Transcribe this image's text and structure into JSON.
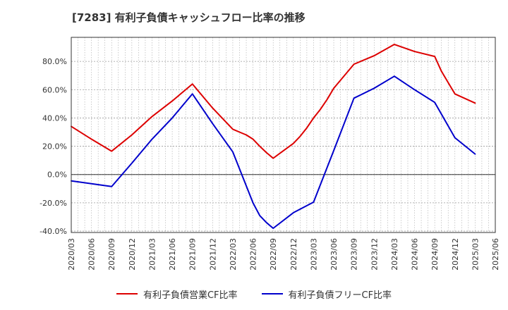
{
  "chart_data": {
    "type": "line",
    "title": "[7283]  有利子負債キャッシュフロー比率の推移",
    "x_ticks": [
      "2020/03",
      "2020/06",
      "2020/09",
      "2020/12",
      "2021/03",
      "2021/06",
      "2021/09",
      "2021/12",
      "2022/03",
      "2022/06",
      "2022/09",
      "2022/12",
      "2023/03",
      "2023/06",
      "2023/09",
      "2023/12",
      "2024/03",
      "2024/06",
      "2024/09",
      "2024/12",
      "2025/03",
      "2025/06"
    ],
    "y_ticks": [
      "-40.0%",
      "-20.0%",
      "0.0%",
      "20.0%",
      "40.0%",
      "60.0%",
      "80.0%"
    ],
    "y_tick_values": [
      -40,
      -20,
      0,
      20,
      40,
      60,
      80
    ],
    "ylim": [
      -41,
      97
    ],
    "grid": true,
    "legend_position": "bottom",
    "series": [
      {
        "name": "有利子負債営業CF比率",
        "color": "#dd0000",
        "x": [
          "2020/03",
          "2020/06",
          "2020/09",
          "2020/12",
          "2021/03",
          "2021/06",
          "2021/09",
          "2021/12",
          "2022/03",
          "2022/04",
          "2022/05",
          "2022/06",
          "2022/07",
          "2022/08",
          "2022/09",
          "2022/10",
          "2022/11",
          "2022/12",
          "2023/01",
          "2023/02",
          "2023/03",
          "2023/04",
          "2023/05",
          "2023/06",
          "2023/09",
          "2023/12",
          "2024/03",
          "2024/06",
          "2024/09",
          "2024/10",
          "2024/11",
          "2024/12",
          "2025/03"
        ],
        "values": [
          34,
          25,
          16.5,
          28,
          41,
          52,
          64,
          47,
          32,
          30,
          28,
          25,
          20,
          15.5,
          11.5,
          15,
          18.5,
          22,
          27,
          33,
          40,
          46,
          53,
          61,
          78,
          84,
          92,
          87,
          83.5,
          73,
          65,
          57,
          50.5
        ]
      },
      {
        "name": "有利子負債フリーCF比率",
        "color": "#0000cc",
        "x": [
          "2020/03",
          "2020/06",
          "2020/09",
          "2020/12",
          "2021/03",
          "2021/06",
          "2021/09",
          "2021/12",
          "2022/03",
          "2022/06",
          "2022/07",
          "2022/08",
          "2022/09",
          "2022/12",
          "2023/03",
          "2023/06",
          "2023/09",
          "2023/12",
          "2024/03",
          "2024/06",
          "2024/09",
          "2024/12",
          "2025/03"
        ],
        "values": [
          -4.5,
          -6.5,
          -8.5,
          8,
          25,
          40,
          57,
          36,
          16,
          -20,
          -29,
          -34,
          -38,
          -27,
          -19.5,
          17,
          54,
          61,
          69.5,
          60,
          51,
          26,
          14.5
        ]
      }
    ]
  }
}
